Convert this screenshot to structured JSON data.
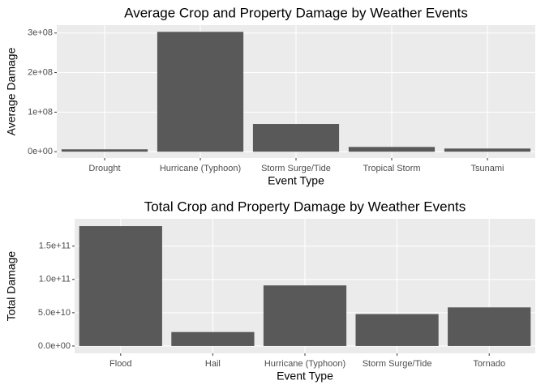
{
  "chart_data": [
    {
      "type": "bar",
      "title": "Average Crop and Property Damage by Weather Events",
      "x_label": "Event Type",
      "y_label": "Average Damage",
      "categories": [
        "Drought",
        "Hurricane (Typhoon)",
        "Storm Surge/Tide",
        "Tropical Storm",
        "Tsunami"
      ],
      "values": [
        6000000,
        303000000,
        70000000,
        12000000,
        8000000
      ],
      "color": "#595959",
      "ylim": [
        -16000000,
        320000000
      ],
      "yticks": [
        {
          "value": 0,
          "label": "0e+00"
        },
        {
          "value": 100000000,
          "label": "1e+08"
        },
        {
          "value": 200000000,
          "label": "2e+08"
        },
        {
          "value": 300000000,
          "label": "3e+08"
        }
      ],
      "grid": true
    },
    {
      "type": "bar",
      "title": "Total Crop and Property Damage by Weather Events",
      "x_label": "Event Type",
      "y_label": "Total Damage",
      "categories": [
        "Flood",
        "Hail",
        "Hurricane (Typhoon)",
        "Storm Surge/Tide",
        "Tornado"
      ],
      "values": [
        180000000000,
        21000000000,
        91000000000,
        48000000000,
        58000000000
      ],
      "color": "#595959",
      "ylim": [
        -11000000000,
        191000000000
      ],
      "yticks": [
        {
          "value": 0,
          "label": "0.0e+00"
        },
        {
          "value": 50000000000,
          "label": "5.0e+10"
        },
        {
          "value": 100000000000,
          "label": "1.0e+11"
        },
        {
          "value": 150000000000,
          "label": "1.5e+11"
        }
      ],
      "grid": true
    }
  ]
}
